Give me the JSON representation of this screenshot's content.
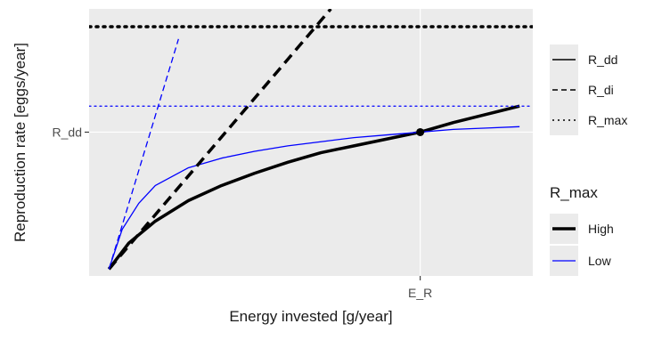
{
  "chart_data": {
    "type": "line",
    "title": "",
    "xlabel": "Energy invested [g/year]",
    "ylabel": "Reproduction rate [eggs/year]",
    "x_tick_labels": [
      {
        "value": 1.0,
        "label": "E_R"
      }
    ],
    "y_tick_labels": [
      {
        "value": 1.0,
        "label": "R_dd"
      }
    ],
    "xlim": [
      0.0,
      1.34
    ],
    "ylim": [
      -0.05,
      1.9
    ],
    "grid": true,
    "legend_placement": "right",
    "legend_linetype": {
      "title": "",
      "entries": [
        {
          "label": "R_dd",
          "dash": "solid"
        },
        {
          "label": "R_di",
          "dash": "dashed"
        },
        {
          "label": "R_max",
          "dash": "dotted"
        }
      ]
    },
    "legend_color": {
      "title": "R_max",
      "entries": [
        {
          "label": "High",
          "color": "#000000",
          "width": 3.5
        },
        {
          "label": "Low",
          "color": "#0000ff",
          "width": 1.3
        }
      ]
    },
    "series": [
      {
        "linetype": "R_dd",
        "group": "High",
        "color": "#000000",
        "x": [
          0.06,
          0.12,
          0.2,
          0.3,
          0.4,
          0.5,
          0.6,
          0.7,
          0.8,
          0.9,
          1.0,
          1.1,
          1.2,
          1.3
        ],
        "y": [
          0.0,
          0.19,
          0.35,
          0.5,
          0.61,
          0.7,
          0.78,
          0.85,
          0.9,
          0.95,
          1.0,
          1.07,
          1.13,
          1.19
        ]
      },
      {
        "linetype": "R_dd",
        "group": "Low",
        "color": "#0000ff",
        "x": [
          0.06,
          0.1,
          0.15,
          0.2,
          0.3,
          0.4,
          0.5,
          0.6,
          0.7,
          0.8,
          0.9,
          1.0,
          1.1,
          1.2,
          1.3
        ],
        "y": [
          0.0,
          0.29,
          0.48,
          0.61,
          0.74,
          0.81,
          0.86,
          0.9,
          0.93,
          0.96,
          0.98,
          1.0,
          1.02,
          1.03,
          1.04
        ]
      },
      {
        "linetype": "R_di",
        "group": "High",
        "color": "#000000",
        "x": [
          0.06,
          0.73
        ],
        "y": [
          0.0,
          1.9
        ]
      },
      {
        "linetype": "R_di",
        "group": "Low",
        "color": "#0000ff",
        "x": [
          0.06,
          0.27
        ],
        "y": [
          0.0,
          1.68
        ]
      },
      {
        "linetype": "R_max",
        "group": "High",
        "color": "#000000",
        "x": [
          0.0,
          1.34
        ],
        "y": [
          1.77,
          1.77
        ]
      },
      {
        "linetype": "R_max",
        "group": "Low",
        "color": "#0000ff",
        "x": [
          0.0,
          1.34
        ],
        "y": [
          1.19,
          1.19
        ]
      }
    ],
    "points": [
      {
        "x": 1.0,
        "y": 1.0,
        "color": "#000000"
      }
    ]
  }
}
